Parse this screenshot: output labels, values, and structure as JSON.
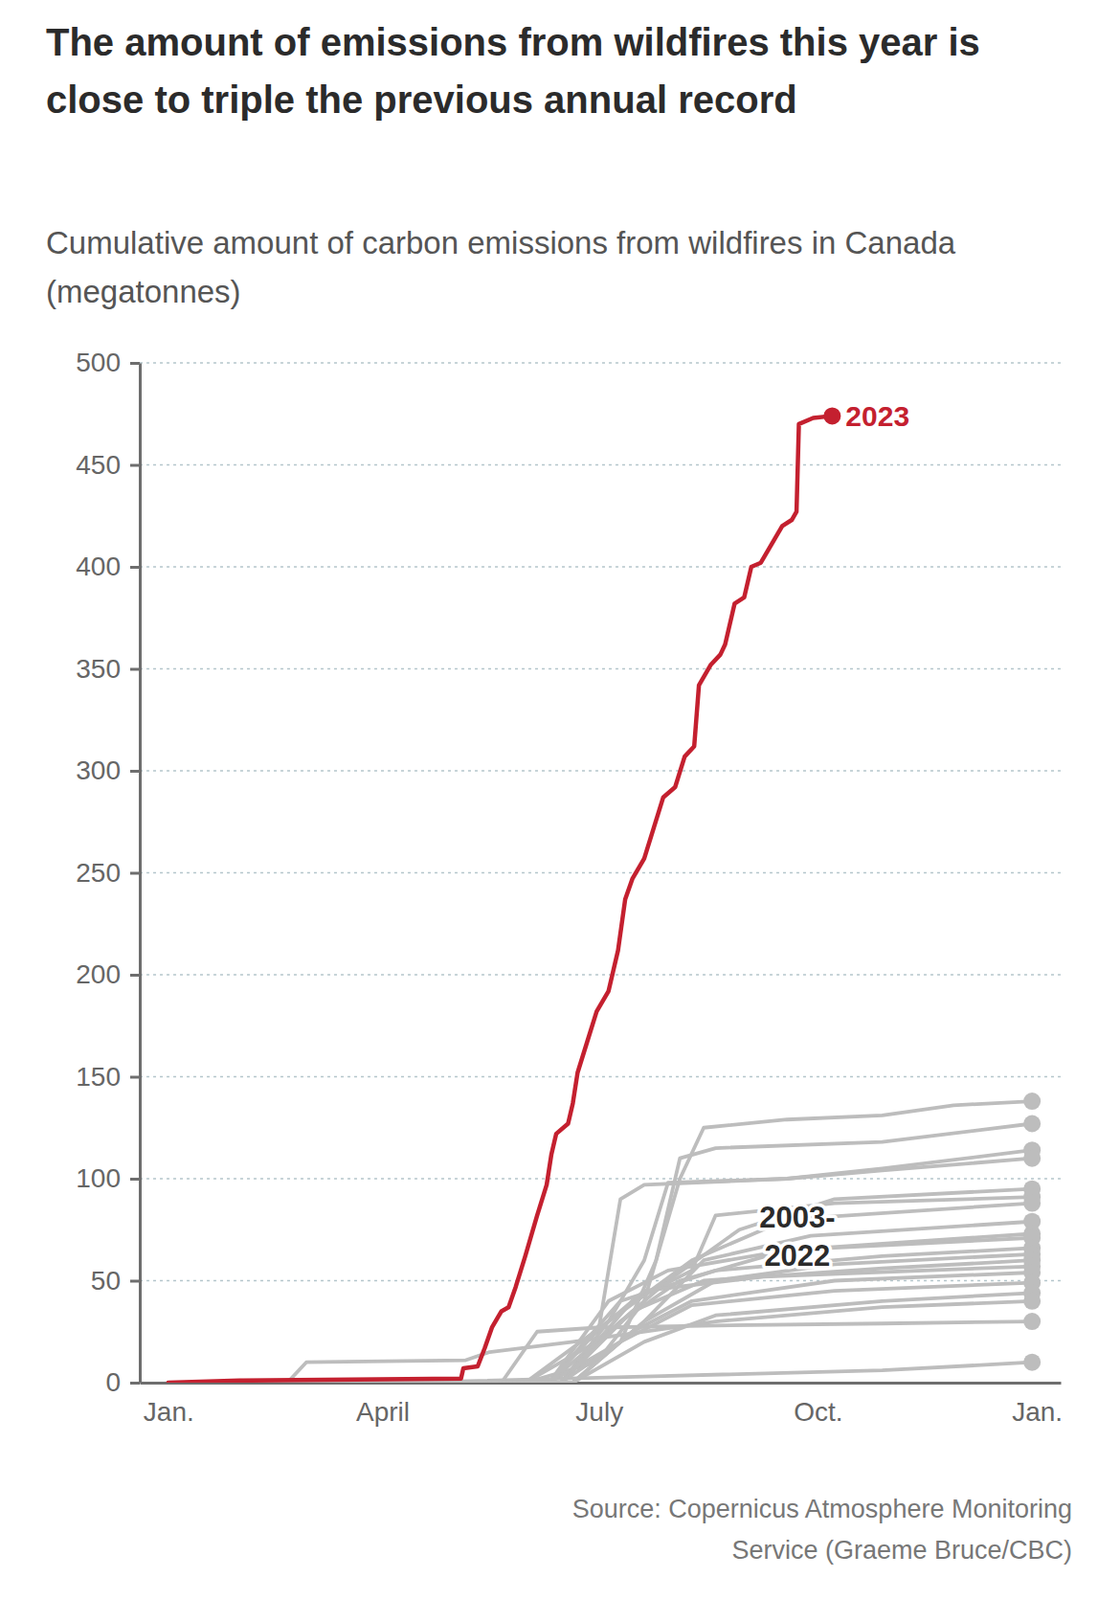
{
  "chart_data": {
    "type": "line",
    "title": "The amount of emissions from wildfires this year is close to triple the previous annual record",
    "subtitle": "Cumulative amount of carbon emissions from wildfires in Canada (megatonnes)",
    "source": "Source: Copernicus Atmosphere Monitoring Service (Graeme Bruce/CBC)",
    "annotation": [
      "2003-",
      "2022"
    ],
    "xlim": [
      -12,
      375
    ],
    "xticks": [
      {
        "value": 0,
        "label": "Jan."
      },
      {
        "value": 90,
        "label": "April"
      },
      {
        "value": 181,
        "label": "July"
      },
      {
        "value": 273,
        "label": "Oct."
      },
      {
        "value": 365,
        "label": "Jan."
      }
    ],
    "ylim": [
      0,
      500
    ],
    "yticks": [
      0,
      50,
      100,
      150,
      200,
      250,
      300,
      350,
      400,
      450,
      500
    ],
    "grid": true,
    "series": [
      {
        "name": "2023",
        "color": "#c4202f",
        "marker": "circle",
        "x": [
          0,
          30,
          123,
          124,
          130,
          133,
          136,
          140,
          143,
          146,
          150,
          155,
          159,
          161,
          163,
          168,
          170,
          172,
          176,
          180,
          185,
          189,
          192,
          195,
          200,
          204,
          208,
          213,
          217,
          221,
          223,
          228,
          232,
          234,
          238,
          242,
          245,
          249,
          253,
          258,
          262,
          264,
          265,
          271,
          279
        ],
        "values": [
          0,
          1,
          2,
          7,
          8,
          17,
          27,
          35,
          37,
          47,
          62,
          82,
          97,
          112,
          122,
          127,
          137,
          152,
          167,
          182,
          192,
          212,
          237,
          247,
          257,
          272,
          287,
          292,
          307,
          312,
          342,
          352,
          357,
          362,
          382,
          385,
          400,
          402,
          410,
          420,
          423,
          427,
          470,
          473,
          474
        ]
      },
      {
        "color": "#bdbdbd",
        "marker": "circle",
        "x": [
          0,
          150,
          180,
          200,
          215,
          225,
          260,
          300,
          330,
          363
        ],
        "values": [
          0,
          0,
          10,
          40,
          100,
          125,
          129,
          131,
          136,
          138
        ]
      },
      {
        "color": "#bdbdbd",
        "marker": "circle",
        "x": [
          0,
          160,
          190,
          205,
          215,
          230,
          300,
          363
        ],
        "values": [
          0,
          0,
          20,
          60,
          110,
          115,
          118,
          127
        ]
      },
      {
        "color": "#bdbdbd",
        "marker": "circle",
        "x": [
          0,
          150,
          180,
          190,
          200,
          260,
          300,
          363
        ],
        "values": [
          0,
          0,
          20,
          90,
          97,
          100,
          105,
          114
        ]
      },
      {
        "color": "#bdbdbd",
        "marker": "circle",
        "x": [
          0,
          165,
          185,
          200,
          210,
          260,
          300,
          363
        ],
        "values": [
          0,
          0,
          30,
          60,
          98,
          100,
          104,
          110
        ]
      },
      {
        "color": "#bdbdbd",
        "marker": "circle",
        "x": [
          0,
          160,
          190,
          210,
          240,
          280,
          363
        ],
        "values": [
          0,
          0,
          30,
          50,
          75,
          90,
          95
        ]
      },
      {
        "color": "#bdbdbd",
        "marker": "circle",
        "x": [
          0,
          165,
          195,
          220,
          230,
          280,
          363
        ],
        "values": [
          0,
          0,
          40,
          55,
          82,
          88,
          91
        ]
      },
      {
        "color": "#bdbdbd",
        "marker": "circle",
        "x": [
          0,
          150,
          185,
          220,
          260,
          363
        ],
        "values": [
          0,
          0,
          30,
          60,
          80,
          88
        ]
      },
      {
        "color": "#bdbdbd",
        "marker": "circle",
        "x": [
          0,
          170,
          200,
          225,
          270,
          363
        ],
        "values": [
          0,
          0,
          30,
          60,
          72,
          79
        ]
      },
      {
        "color": "#bdbdbd",
        "marker": "circle",
        "x": [
          0,
          160,
          185,
          210,
          260,
          363
        ],
        "values": [
          0,
          0,
          40,
          55,
          65,
          73
        ]
      },
      {
        "color": "#bdbdbd",
        "marker": "circle",
        "x": [
          0,
          165,
          190,
          215,
          260,
          363
        ],
        "values": [
          0,
          0,
          30,
          50,
          65,
          71
        ]
      },
      {
        "color": "#bdbdbd",
        "marker": "circle",
        "x": [
          0,
          160,
          190,
          230,
          300,
          363
        ],
        "values": [
          0,
          0,
          40,
          55,
          62,
          66
        ]
      },
      {
        "color": "#bdbdbd",
        "marker": "circle",
        "x": [
          0,
          170,
          200,
          230,
          280,
          363
        ],
        "values": [
          0,
          0,
          30,
          50,
          58,
          63
        ]
      },
      {
        "color": "#bdbdbd",
        "marker": "circle",
        "x": [
          0,
          165,
          195,
          225,
          300,
          363
        ],
        "values": [
          0,
          0,
          35,
          50,
          56,
          60
        ]
      },
      {
        "color": "#bdbdbd",
        "marker": "circle",
        "x": [
          0,
          160,
          180,
          200,
          250,
          363
        ],
        "values": [
          0,
          0,
          25,
          45,
          52,
          57
        ]
      },
      {
        "color": "#bdbdbd",
        "marker": "circle",
        "x": [
          0,
          170,
          195,
          220,
          280,
          363
        ],
        "values": [
          0,
          0,
          25,
          40,
          50,
          54
        ]
      },
      {
        "color": "#bdbdbd",
        "marker": "circle",
        "x": [
          0,
          165,
          190,
          220,
          280,
          363
        ],
        "values": [
          0,
          0,
          20,
          38,
          45,
          49
        ]
      },
      {
        "color": "#bdbdbd",
        "marker": "circle",
        "x": [
          0,
          170,
          200,
          230,
          300,
          363
        ],
        "values": [
          0,
          0,
          20,
          33,
          40,
          44
        ]
      },
      {
        "color": "#bdbdbd",
        "marker": "circle",
        "x": [
          0,
          50,
          58,
          125,
          135,
          170,
          230,
          300,
          363
        ],
        "values": [
          0,
          0,
          10,
          11,
          15,
          20,
          30,
          37,
          40
        ]
      },
      {
        "color": "#bdbdbd",
        "marker": "circle",
        "x": [
          0,
          140,
          155,
          180,
          230,
          300,
          363
        ],
        "values": [
          0,
          0,
          25,
          27,
          28,
          29,
          30
        ]
      },
      {
        "color": "#bdbdbd",
        "marker": "circle",
        "x": [
          0,
          100,
          200,
          300,
          363
        ],
        "values": [
          0,
          0,
          3,
          6,
          10
        ]
      }
    ]
  }
}
